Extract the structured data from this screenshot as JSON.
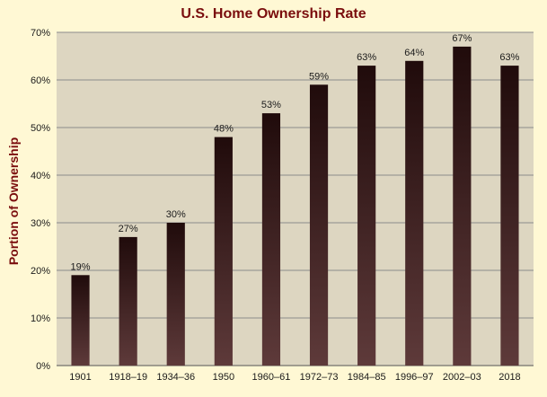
{
  "chart_data": {
    "type": "bar",
    "title": "U.S. Home Ownership Rate",
    "xlabel": "",
    "ylabel": "Portion of Ownership",
    "categories": [
      "1901",
      "1918–19",
      "1934–36",
      "1950",
      "1960–61",
      "1972–73",
      "1984–85",
      "1996–97",
      "2002–03",
      "2018"
    ],
    "values": [
      19,
      27,
      30,
      48,
      53,
      59,
      63,
      64,
      67,
      63
    ],
    "value_labels": [
      "19%",
      "27%",
      "30%",
      "48%",
      "53%",
      "59%",
      "63%",
      "64%",
      "67%",
      "63%"
    ],
    "ylim": [
      0,
      70
    ],
    "yticks": [
      0,
      10,
      20,
      30,
      40,
      50,
      60,
      70
    ],
    "ytick_labels": [
      "0%",
      "10%",
      "20%",
      "30%",
      "40%",
      "50%",
      "60%",
      "70%"
    ],
    "grid": true,
    "legend": "none"
  },
  "colors": {
    "page_background": "#fff8d4",
    "plot_background": "#ddd6c1",
    "gridline": "#8c8c8c",
    "bar_top": "#200b0b",
    "bar_bottom": "#5e3a3a",
    "title": "#7a0d0d"
  }
}
